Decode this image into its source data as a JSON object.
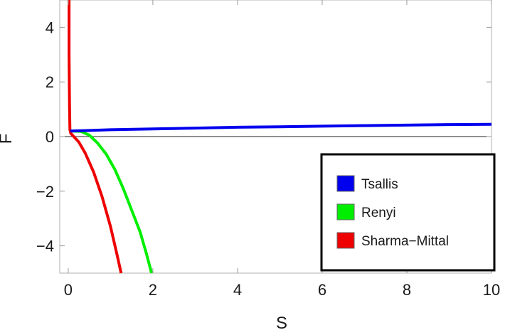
{
  "chart_data": {
    "type": "line",
    "xlabel": "S",
    "ylabel": "F",
    "xlim": [
      -0.2,
      10
    ],
    "ylim": [
      -5,
      5
    ],
    "xticks": [
      0,
      2,
      4,
      6,
      8,
      10
    ],
    "yticks": [
      -4,
      -2,
      0,
      2,
      4
    ],
    "x_tick_labels": [
      "0",
      "2",
      "4",
      "6",
      "8",
      "10"
    ],
    "y_tick_labels": [
      "−4",
      "−2",
      "0",
      "2",
      "4"
    ],
    "grid": false,
    "legend_position": "bottom-right",
    "series": [
      {
        "name": "Tsallis",
        "color": "#0000ee",
        "points": [
          [
            0.05,
            0.2
          ],
          [
            1,
            0.25
          ],
          [
            2,
            0.28
          ],
          [
            3,
            0.31
          ],
          [
            4,
            0.34
          ],
          [
            5,
            0.36
          ],
          [
            6,
            0.38
          ],
          [
            7,
            0.4
          ],
          [
            8,
            0.42
          ],
          [
            9,
            0.44
          ],
          [
            10,
            0.45
          ]
        ]
      },
      {
        "name": "Renyi",
        "color": "#00ee00",
        "points": [
          [
            0.05,
            0.2
          ],
          [
            0.3,
            0.19
          ],
          [
            0.5,
            0.05
          ],
          [
            0.7,
            -0.25
          ],
          [
            0.9,
            -0.65
          ],
          [
            1.1,
            -1.2
          ],
          [
            1.3,
            -1.9
          ],
          [
            1.5,
            -2.7
          ],
          [
            1.7,
            -3.5
          ],
          [
            1.85,
            -4.3
          ],
          [
            1.97,
            -5.0
          ]
        ]
      },
      {
        "name": "Sharma−Mittal",
        "color": "#ee0000",
        "points": [
          [
            0.02,
            5.0
          ],
          [
            0.02,
            3.0
          ],
          [
            0.03,
            1.2
          ],
          [
            0.04,
            0.25
          ],
          [
            0.06,
            0.12
          ],
          [
            0.1,
            0.05
          ],
          [
            0.25,
            -0.2
          ],
          [
            0.4,
            -0.6
          ],
          [
            0.6,
            -1.3
          ],
          [
            0.8,
            -2.2
          ],
          [
            1.0,
            -3.3
          ],
          [
            1.15,
            -4.3
          ],
          [
            1.25,
            -5.0
          ]
        ]
      }
    ]
  }
}
